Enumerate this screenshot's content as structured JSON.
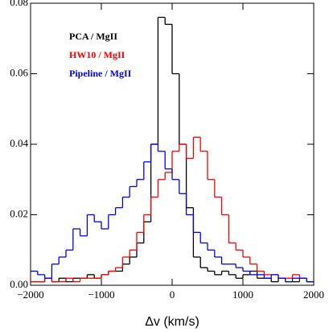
{
  "chart_data": {
    "type": "histogram",
    "xlabel": "Δv (km/s)",
    "bins": [
      -2000,
      -1900,
      -1800,
      -1700,
      -1600,
      -1500,
      -1400,
      -1300,
      -1200,
      -1100,
      -1000,
      -900,
      -800,
      -700,
      -600,
      -500,
      -400,
      -300,
      -200,
      -100,
      0,
      100,
      200,
      300,
      400,
      500,
      600,
      700,
      800,
      900,
      1000,
      1100,
      1200,
      1300,
      1400,
      1500,
      1600,
      1700,
      1800,
      1900,
      2000
    ],
    "series": [
      {
        "name": "PCA / MgII",
        "color": "#000000",
        "values": [
          0.001,
          0.001,
          0.002,
          0.001,
          0.002,
          0.001,
          0.002,
          0.002,
          0.003,
          0.002,
          0.003,
          0.004,
          0.004,
          0.006,
          0.008,
          0.012,
          0.018,
          0.04,
          0.076,
          0.074,
          0.06,
          0.04,
          0.022,
          0.008,
          0.005,
          0.004,
          0.003,
          0.004,
          0.003,
          0.002,
          0.003,
          0.004,
          0.002,
          0.002,
          0.001,
          0.002,
          0.001,
          0.001,
          0.002,
          0.001
        ]
      },
      {
        "name": "HW10 / MgII",
        "color": "#ff0000",
        "values": [
          0.001,
          0.001,
          0.002,
          0.001,
          0.001,
          0.002,
          0.001,
          0.002,
          0.002,
          0.002,
          0.003,
          0.004,
          0.005,
          0.008,
          0.01,
          0.015,
          0.02,
          0.025,
          0.03,
          0.032,
          0.038,
          0.04,
          0.036,
          0.042,
          0.038,
          0.03,
          0.025,
          0.02,
          0.012,
          0.01,
          0.008,
          0.006,
          0.004,
          0.003,
          0.003,
          0.002,
          0.002,
          0.003,
          0.002,
          0.001
        ]
      },
      {
        "name": "Pipeline / MgII",
        "color": "#0000ff",
        "values": [
          0.004,
          0.003,
          0.002,
          0.006,
          0.008,
          0.01,
          0.016,
          0.014,
          0.02,
          0.018,
          0.016,
          0.02,
          0.022,
          0.025,
          0.028,
          0.03,
          0.035,
          0.04,
          0.038,
          0.033,
          0.03,
          0.026,
          0.02,
          0.015,
          0.012,
          0.01,
          0.008,
          0.006,
          0.006,
          0.005,
          0.004,
          0.003,
          0.003,
          0.002,
          0.003,
          0.002,
          0.001,
          0.002,
          0.002,
          0.001
        ]
      }
    ],
    "xlim": [
      -2000,
      2000
    ],
    "xticks": [
      {
        "value": -2000,
        "label": "−2000"
      },
      {
        "value": -1000,
        "label": "−1000"
      },
      0,
      1000,
      2000
    ],
    "ylim": [
      0,
      0.08
    ],
    "yticks": [
      {
        "value": 0,
        "label": "0.00"
      },
      0.02,
      0.04,
      0.06,
      0.08
    ]
  }
}
